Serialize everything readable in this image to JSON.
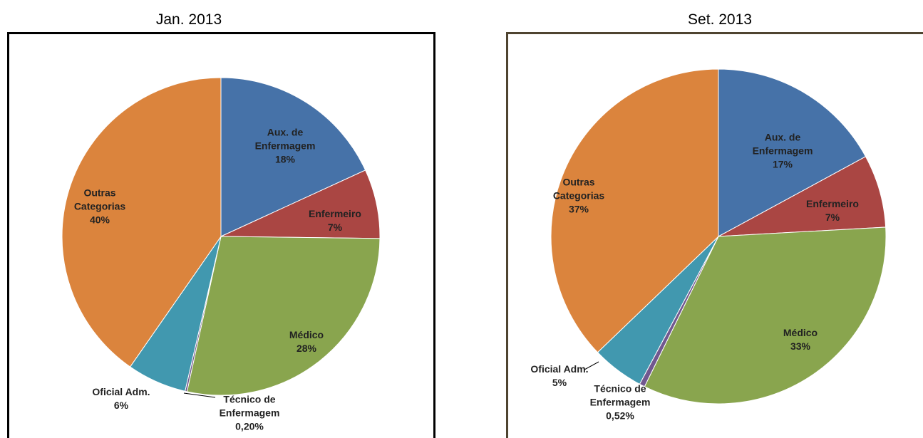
{
  "chart_data": [
    {
      "type": "pie",
      "title": "Jan. 2013",
      "categories": [
        "Aux. de Enfermagem",
        "Enfermeiro",
        "Médico",
        "Técnico de Enfermagem",
        "Oficial Adm.",
        "Outras Categorias"
      ],
      "values": [
        18,
        7,
        28,
        0.2,
        6,
        40
      ],
      "value_labels": [
        "18%",
        "7%",
        "28%",
        "0,20%",
        "6%",
        "40%"
      ],
      "colors": [
        "#4672a8",
        "#aa4643",
        "#89a54e",
        "#71588f",
        "#4198af",
        "#db843d"
      ]
    },
    {
      "type": "pie",
      "title": "Set. 2013",
      "categories": [
        "Aux. de Enfermagem",
        "Enfermeiro",
        "Médico",
        "Técnico de Enfermagem",
        "Oficial Adm.",
        "Outras Categorias"
      ],
      "values": [
        17,
        7,
        33,
        0.52,
        5,
        37
      ],
      "value_labels": [
        "17%",
        "7%",
        "33%",
        "0,52%",
        "5%",
        "37%"
      ],
      "colors": [
        "#4672a8",
        "#aa4643",
        "#89a54e",
        "#71588f",
        "#4198af",
        "#db843d"
      ]
    }
  ]
}
